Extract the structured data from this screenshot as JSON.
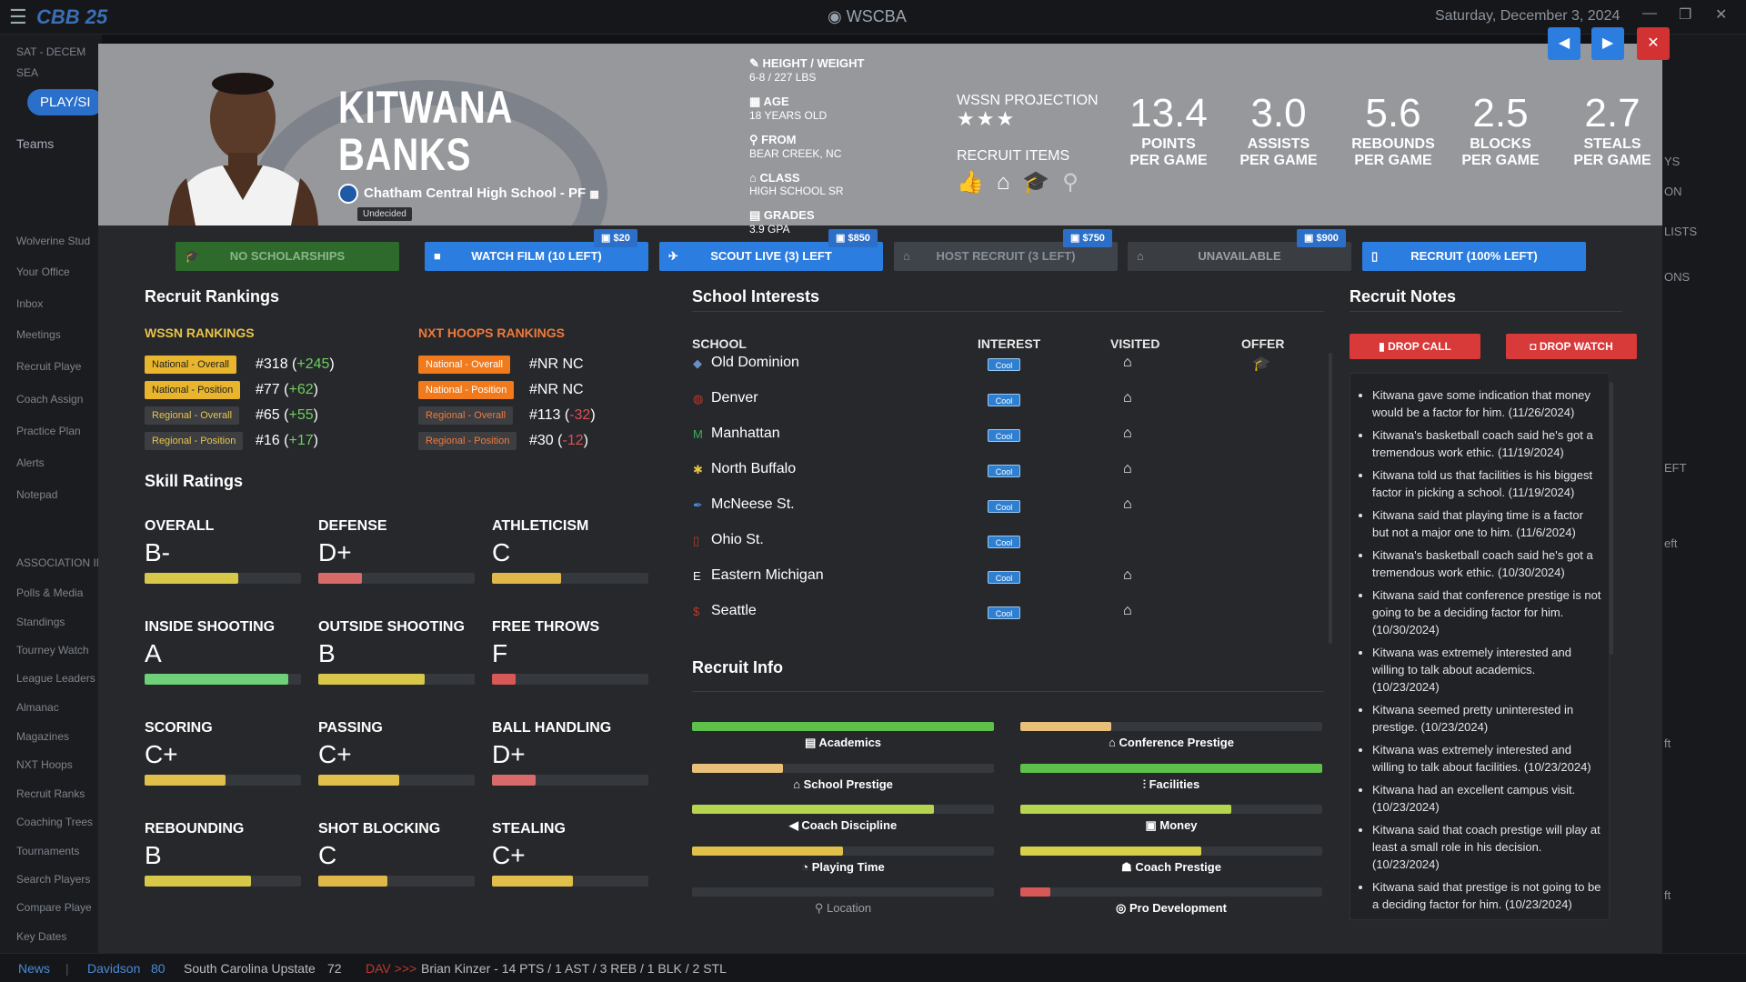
{
  "titlebar": {
    "game": "25",
    "app_title": "WSCBA",
    "date": "Saturday, December 3, 2024"
  },
  "sidebar": {
    "items": [
      {
        "label": "SAT - DECEM"
      },
      {
        "label": "SEA"
      },
      {
        "label": "PLAY/SI"
      },
      {
        "label": "Teams"
      },
      {
        "label": "Wolverine Stud"
      },
      {
        "label": "Your Office"
      },
      {
        "label": "Inbox"
      },
      {
        "label": "Meetings"
      },
      {
        "label": "Recruit Playe"
      },
      {
        "label": "Coach Assign"
      },
      {
        "label": "Practice Plan"
      },
      {
        "label": "Alerts"
      },
      {
        "label": "Notepad"
      },
      {
        "label": "ASSOCIATION INF"
      },
      {
        "label": "Polls & Media"
      },
      {
        "label": "Standings"
      },
      {
        "label": "Tourney Watch"
      },
      {
        "label": "League Leaders"
      },
      {
        "label": "Almanac"
      },
      {
        "label": "Magazines"
      },
      {
        "label": "NXT Hoops"
      },
      {
        "label": "Recruit Ranks"
      },
      {
        "label": "Coaching Trees"
      },
      {
        "label": "Tournaments"
      },
      {
        "label": "Search Players"
      },
      {
        "label": "Compare Playe"
      },
      {
        "label": "Key Dates"
      }
    ]
  },
  "right_edge": {
    "items": [
      "YS",
      "ON",
      "LISTS",
      "ONS",
      "EFT",
      "eft",
      "ft",
      "ft"
    ]
  },
  "player": {
    "first_name": "KITWANA",
    "last_name": "BANKS",
    "school": "Chatham Central High School - PF",
    "status": "Undecided",
    "height_weight_label": "HEIGHT / WEIGHT",
    "height_weight": "6-8 / 227 LBS",
    "age_label": "AGE",
    "age": "18 YEARS OLD",
    "from_label": "FROM",
    "from": "BEAR CREEK, NC",
    "class_label": "CLASS",
    "class": "HIGH SCHOOL SR",
    "grades_label": "GRADES",
    "grades": "3.9 GPA",
    "projection_label": "WSSN PROJECTION",
    "projection_stars": "★★★",
    "recruit_items_label": "RECRUIT ITEMS"
  },
  "stats": [
    {
      "value": "13.4",
      "label1": "POINTS",
      "label2": "PER GAME"
    },
    {
      "value": "3.0",
      "label1": "ASSISTS",
      "label2": "PER GAME"
    },
    {
      "value": "5.6",
      "label1": "REBOUNDS",
      "label2": "PER GAME"
    },
    {
      "value": "2.5",
      "label1": "BLOCKS",
      "label2": "PER GAME"
    },
    {
      "value": "2.7",
      "label1": "STEALS",
      "label2": "PER GAME"
    }
  ],
  "actions": [
    {
      "label": "NO SCHOLARSHIPS",
      "price": ""
    },
    {
      "label": "WATCH FILM (10 LEFT)",
      "price": "$20"
    },
    {
      "label": "SCOUT LIVE (3) LEFT",
      "price": "$850"
    },
    {
      "label": "HOST RECRUIT (3 LEFT)",
      "price": "$750"
    },
    {
      "label": "UNAVAILABLE",
      "price": "$900"
    },
    {
      "label": "RECRUIT (100% LEFT)",
      "price": ""
    }
  ],
  "rankings": {
    "title": "Recruit Rankings",
    "wssn_title": "WSSN RANKINGS",
    "nxt_title": "NXT HOOPS RANKINGS",
    "wssn": [
      {
        "label": "National - Overall",
        "rank": "#318",
        "change": "+245"
      },
      {
        "label": "National - Position",
        "rank": "#77",
        "change": "+62"
      },
      {
        "label": "Regional - Overall",
        "rank": "#65",
        "change": "+55"
      },
      {
        "label": "Regional - Position",
        "rank": "#16",
        "change": "+17"
      }
    ],
    "nxt": [
      {
        "label": "National - Overall",
        "rank": "#NR NC",
        "change": ""
      },
      {
        "label": "National - Position",
        "rank": "#NR NC",
        "change": ""
      },
      {
        "label": "Regional - Overall",
        "rank": "#113",
        "change": "-32"
      },
      {
        "label": "Regional - Position",
        "rank": "#30",
        "change": "-12"
      }
    ]
  },
  "skills": {
    "title": "Skill Ratings",
    "items": [
      {
        "label": "OVERALL",
        "grade": "B-",
        "level": 0.6,
        "color": "#d8c84a"
      },
      {
        "label": "DEFENSE",
        "grade": "D+",
        "level": 0.28,
        "color": "#d86a6a"
      },
      {
        "label": "ATHLETICISM",
        "grade": "C",
        "level": 0.44,
        "color": "#e0b84a"
      },
      {
        "label": "INSIDE SHOOTING",
        "grade": "A",
        "level": 0.92,
        "color": "#6fd07a"
      },
      {
        "label": "OUTSIDE SHOOTING",
        "grade": "B",
        "level": 0.68,
        "color": "#d8c84a"
      },
      {
        "label": "FREE THROWS",
        "grade": "F",
        "level": 0.15,
        "color": "#d85858"
      },
      {
        "label": "SCORING",
        "grade": "C+",
        "level": 0.52,
        "color": "#e0c04a"
      },
      {
        "label": "PASSING",
        "grade": "C+",
        "level": 0.52,
        "color": "#e0c04a"
      },
      {
        "label": "BALL HANDLING",
        "grade": "D+",
        "level": 0.28,
        "color": "#d86a6a"
      },
      {
        "label": "REBOUNDING",
        "grade": "B",
        "level": 0.68,
        "color": "#d8c84a"
      },
      {
        "label": "SHOT BLOCKING",
        "grade": "C",
        "level": 0.44,
        "color": "#e0b84a"
      },
      {
        "label": "STEALING",
        "grade": "C+",
        "level": 0.52,
        "color": "#e0c04a"
      }
    ]
  },
  "school_interests": {
    "title": "School Interests",
    "col_school": "SCHOOL",
    "col_interest": "INTEREST",
    "col_visited": "VISITED",
    "col_offer": "OFFER",
    "rows": [
      {
        "school": "Old Dominion",
        "interest": "Cool",
        "visited": true,
        "offer": true
      },
      {
        "school": "Denver",
        "interest": "Cool",
        "visited": true,
        "offer": false
      },
      {
        "school": "Manhattan",
        "interest": "Cool",
        "visited": true,
        "offer": false
      },
      {
        "school": "North Buffalo",
        "interest": "Cool",
        "visited": true,
        "offer": false
      },
      {
        "school": "McNeese St.",
        "interest": "Cool",
        "visited": true,
        "offer": false
      },
      {
        "school": "Ohio St.",
        "interest": "Cool",
        "visited": false,
        "offer": false
      },
      {
        "school": "Eastern Michigan",
        "interest": "Cool",
        "visited": true,
        "offer": false
      },
      {
        "school": "Seattle",
        "interest": "Cool",
        "visited": true,
        "offer": false
      }
    ]
  },
  "recruit_info": {
    "title": "Recruit Info",
    "left": [
      {
        "label": "Academics",
        "level": 1.0,
        "color": "#5cc04a"
      },
      {
        "label": "School Prestige",
        "level": 0.3,
        "color": "#e8c07a"
      },
      {
        "label": "Coach Discipline",
        "level": 0.8,
        "color": "#b6d450"
      },
      {
        "label": "Playing Time",
        "level": 0.5,
        "color": "#e0c04a"
      },
      {
        "label": "Location",
        "level": 0.0,
        "color": "#888"
      }
    ],
    "right": [
      {
        "label": "Conference Prestige",
        "level": 0.3,
        "color": "#e8c07a"
      },
      {
        "label": "Facilities",
        "level": 1.0,
        "color": "#5cc04a"
      },
      {
        "label": "Money",
        "level": 0.7,
        "color": "#b6d450"
      },
      {
        "label": "Coach Prestige",
        "level": 0.6,
        "color": "#d8d04a"
      },
      {
        "label": "Pro Development",
        "level": 0.1,
        "color": "#d85858"
      }
    ]
  },
  "notes": {
    "title": "Recruit Notes",
    "drop_call": "DROP CALL",
    "drop_watch": "DROP WATCH",
    "items": [
      "Kitwana gave some indication that money would be a factor for him. (11/26/2024)",
      "Kitwana's basketball coach said he's got a tremendous work ethic. (11/19/2024)",
      "Kitwana told us that facilities is his biggest factor in picking a school. (11/19/2024)",
      "Kitwana said that playing time is a factor but not a major one to him. (11/6/2024)",
      "Kitwana's basketball coach said he's got a tremendous work ethic. (10/30/2024)",
      "Kitwana said that conference prestige is not going to be a deciding factor for him. (10/30/2024)",
      "Kitwana was extremely interested and willing to talk about academics. (10/23/2024)",
      "Kitwana seemed pretty uninterested in prestige. (10/23/2024)",
      "Kitwana was extremely interested and willing to talk about facilities. (10/23/2024)",
      "Kitwana had an excellent campus visit. (10/23/2024)",
      "Kitwana said that coach prestige will play at least a small role in his decision. (10/23/2024)",
      "Kitwana said that prestige is not going to be a deciding factor for him. (10/23/2024)"
    ]
  },
  "ticker": {
    "news": "News",
    "team1": "Davidson",
    "score1": "80",
    "team2": "South Carolina Upstate",
    "score2": "72",
    "tag": "DAV >>>",
    "line": "Brian Kinzer - 14 PTS / 1 AST / 3 REB / 1 BLK / 2 STL"
  }
}
